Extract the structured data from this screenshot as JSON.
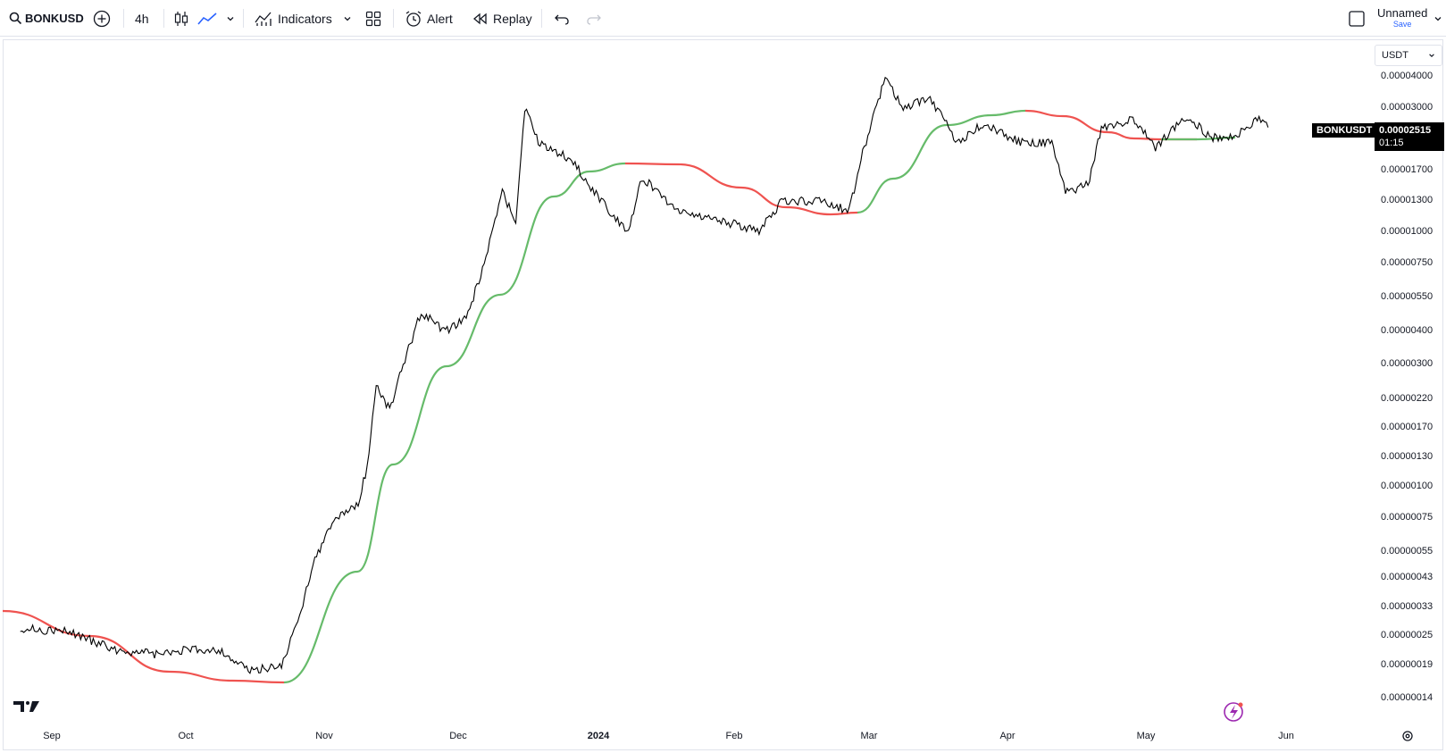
{
  "toolbar": {
    "symbol": "BONKUSD",
    "interval": "4h",
    "indicators_label": "Indicators",
    "alert_label": "Alert",
    "replay_label": "Replay",
    "layout_name": "Unnamed",
    "save_label": "Save"
  },
  "currency": "USDT",
  "price_scale": [
    "0.00004000",
    "0.00003000",
    "0.00001700",
    "0.00001300",
    "0.00001000",
    "0.00000750",
    "0.00000550",
    "0.00000400",
    "0.00000300",
    "0.00000220",
    "0.00000170",
    "0.00000130",
    "0.00000100",
    "0.00000075",
    "0.00000055",
    "0.00000043",
    "0.00000033",
    "0.00000025",
    "0.00000019",
    "0.00000014"
  ],
  "time_scale": [
    "Sep",
    "Oct",
    "Nov",
    "Dec",
    "2024",
    "Feb",
    "Mar",
    "Apr",
    "May",
    "Jun"
  ],
  "last": {
    "symbol": "BONKUSDT",
    "price": "0.00002515",
    "countdown": "01:15"
  },
  "colors": {
    "price_line": "#000000",
    "ma_up": "#66bb6a",
    "ma_down": "#ef5350",
    "accent": "#2962ff"
  },
  "chart_data": {
    "type": "line",
    "log_scale": true,
    "series": [
      {
        "name": "BONKUSDT",
        "values": [
          [
            "2023-08-25",
            2.7e-07
          ],
          [
            "2023-09-05",
            2.6e-07
          ],
          [
            "2023-09-15",
            2.2e-07
          ],
          [
            "2023-09-25",
            2.1e-07
          ],
          [
            "2023-10-01",
            2.2e-07
          ],
          [
            "2023-10-08",
            2.2e-07
          ],
          [
            "2023-10-15",
            1.8e-07
          ],
          [
            "2023-10-22",
            1.9e-07
          ],
          [
            "2023-10-26",
            3e-07
          ],
          [
            "2023-10-29",
            5e-07
          ],
          [
            "2023-11-03",
            7.5e-07
          ],
          [
            "2023-11-08",
            8.5e-07
          ],
          [
            "2023-11-10",
            1.2e-06
          ],
          [
            "2023-11-12",
            2.5e-06
          ],
          [
            "2023-11-15",
            2e-06
          ],
          [
            "2023-11-18",
            3e-06
          ],
          [
            "2023-11-22",
            4.8e-06
          ],
          [
            "2023-11-27",
            4e-06
          ],
          [
            "2023-12-02",
            4.5e-06
          ],
          [
            "2023-12-06",
            7.5e-06
          ],
          [
            "2023-12-10",
            1.4e-05
          ],
          [
            "2023-12-13",
            1.1e-05
          ],
          [
            "2023-12-15",
            3e-05
          ],
          [
            "2023-12-18",
            2.2e-05
          ],
          [
            "2023-12-25",
            1.9e-05
          ],
          [
            "2024-01-01",
            1.3e-05
          ],
          [
            "2024-01-07",
            1e-05
          ],
          [
            "2024-01-10",
            1.6e-05
          ],
          [
            "2024-01-18",
            1.2e-05
          ],
          [
            "2024-01-28",
            1.1e-05
          ],
          [
            "2024-02-05",
            1e-05
          ],
          [
            "2024-02-10",
            1.3e-05
          ],
          [
            "2024-02-18",
            1.3e-05
          ],
          [
            "2024-02-25",
            1.2e-05
          ],
          [
            "2024-02-28",
            2e-05
          ],
          [
            "2024-03-04",
            4e-05
          ],
          [
            "2024-03-08",
            3e-05
          ],
          [
            "2024-03-14",
            3.3e-05
          ],
          [
            "2024-03-20",
            2.2e-05
          ],
          [
            "2024-03-26",
            2.6e-05
          ],
          [
            "2024-04-03",
            2.2e-05
          ],
          [
            "2024-04-10",
            2.2e-05
          ],
          [
            "2024-04-13",
            1.4e-05
          ],
          [
            "2024-04-18",
            1.5e-05
          ],
          [
            "2024-04-21",
            2.5e-05
          ],
          [
            "2024-04-28",
            2.7e-05
          ],
          [
            "2024-05-03",
            2.1e-05
          ],
          [
            "2024-05-10",
            2.8e-05
          ],
          [
            "2024-05-15",
            2.3e-05
          ],
          [
            "2024-05-20",
            2.3e-05
          ],
          [
            "2024-05-26",
            2.7e-05
          ],
          [
            "2024-05-28",
            2.515e-05
          ]
        ]
      }
    ]
  }
}
